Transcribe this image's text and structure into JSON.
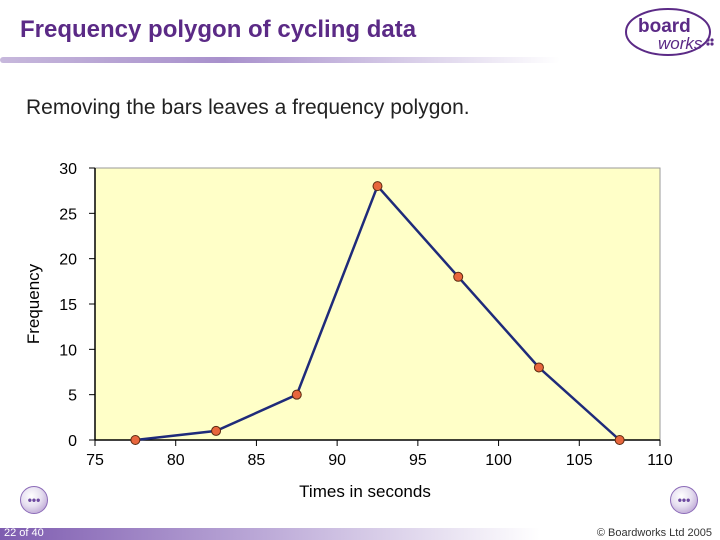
{
  "slide": {
    "title": "Frequency polygon of cycling data",
    "subtitle": "Removing the bars leaves a frequency polygon.",
    "page_number": "22 of 40",
    "copyright": "© Boardworks Ltd 2005"
  },
  "logo": {
    "line1": "board",
    "line2": "works"
  },
  "colors": {
    "title": "#5b2a86",
    "plot_background": "#ffffc8",
    "line": "#1f2b7a",
    "marker": "#e8663d",
    "logo": "#5b2a86"
  },
  "chart_data": {
    "type": "line",
    "title": "",
    "xlabel": "Times in seconds",
    "ylabel": "Frequency",
    "xlim": [
      75,
      110
    ],
    "ylim": [
      0,
      30
    ],
    "x_ticks": [
      75,
      80,
      85,
      90,
      95,
      100,
      105,
      110
    ],
    "y_ticks": [
      0,
      5,
      10,
      15,
      20,
      25,
      30
    ],
    "series": [
      {
        "name": "Frequency",
        "x": [
          77.5,
          82.5,
          87.5,
          92.5,
          97.5,
          102.5,
          107.5
        ],
        "y": [
          0,
          1,
          5,
          28,
          18,
          8,
          0
        ]
      }
    ],
    "grid": false,
    "legend": "none"
  }
}
